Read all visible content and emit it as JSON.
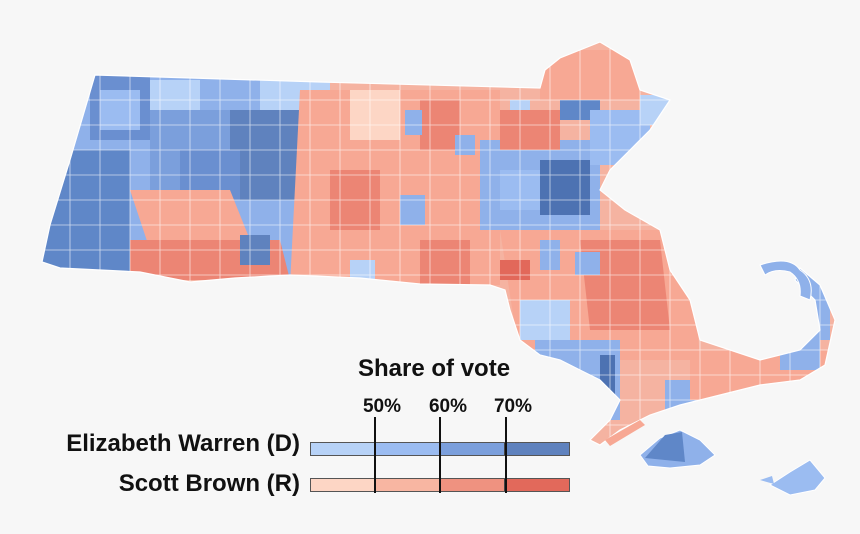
{
  "map": {
    "region": "Massachusetts",
    "colors": {
      "warren_light": "#b7d2f7",
      "warren_mid": "#8fb1ea",
      "warren_dark": "#5f87c8",
      "warren_darkest": "#4d72b2",
      "brown_light": "#fdd6c5",
      "brown_mid": "#f7a894",
      "brown_dark": "#ec8574",
      "brown_darkest": "#e2685a",
      "border": "#ffffff"
    }
  },
  "legend": {
    "title": "Share of vote",
    "ticks": [
      "50%",
      "60%",
      "70%"
    ],
    "candidates": [
      {
        "name": "Elizabeth Warren (D)",
        "colors": [
          "#b7d2f7",
          "#9bbcf1",
          "#7b9fdc",
          "#5f82be"
        ]
      },
      {
        "name": "Scott Brown (R)",
        "colors": [
          "#fdd6c5",
          "#f8b6a2",
          "#ef9280",
          "#e2695b"
        ]
      }
    ]
  }
}
